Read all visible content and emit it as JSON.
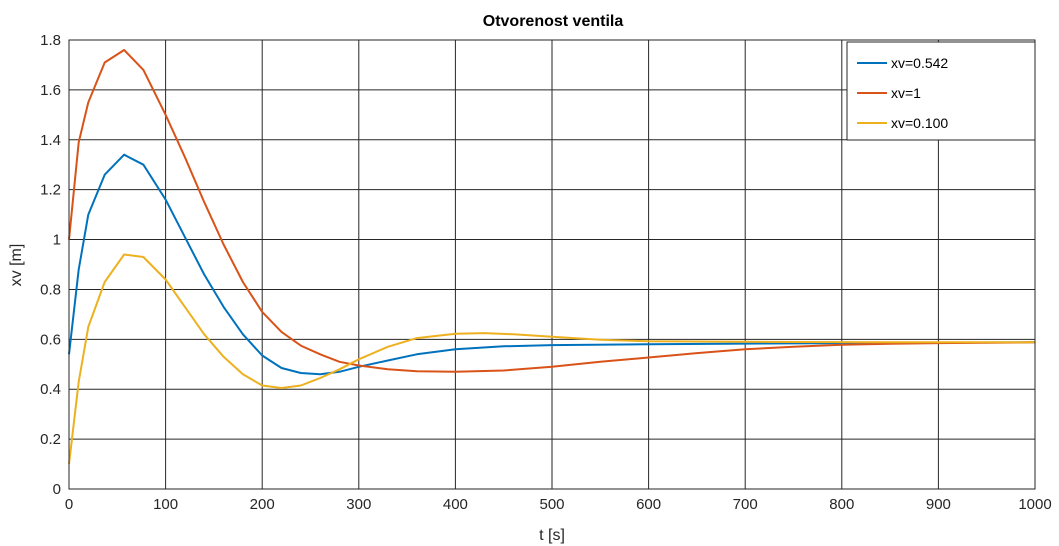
{
  "chart_data": {
    "type": "line",
    "title": "Otvorenost ventila",
    "xlabel": "t [s]",
    "ylabel": "xv [m]",
    "xlim": [
      0,
      1000
    ],
    "ylim": [
      0,
      1.8
    ],
    "xticks": [
      "0",
      "100",
      "200",
      "300",
      "400",
      "500",
      "600",
      "700",
      "800",
      "900",
      "1000"
    ],
    "yticks": [
      "0",
      "0.2",
      "0.4",
      "0.6",
      "0.8",
      "1",
      "1.2",
      "1.4",
      "1.6",
      "1.8"
    ],
    "grid": true,
    "legend_position": "top-right",
    "series": [
      {
        "name": "xv=0.542",
        "color": "#0072BD",
        "points": [
          [
            0,
            0.54
          ],
          [
            10,
            0.88
          ],
          [
            20,
            1.1
          ],
          [
            37,
            1.26
          ],
          [
            57,
            1.34
          ],
          [
            77,
            1.3
          ],
          [
            100,
            1.16
          ],
          [
            120,
            1.01
          ],
          [
            140,
            0.86
          ],
          [
            160,
            0.73
          ],
          [
            180,
            0.62
          ],
          [
            200,
            0.535
          ],
          [
            220,
            0.485
          ],
          [
            240,
            0.465
          ],
          [
            260,
            0.46
          ],
          [
            280,
            0.47
          ],
          [
            300,
            0.49
          ],
          [
            330,
            0.515
          ],
          [
            360,
            0.54
          ],
          [
            400,
            0.56
          ],
          [
            450,
            0.572
          ],
          [
            500,
            0.577
          ],
          [
            600,
            0.58
          ],
          [
            700,
            0.583
          ],
          [
            800,
            0.585
          ],
          [
            900,
            0.587
          ],
          [
            1000,
            0.588
          ]
        ]
      },
      {
        "name": "xv=1",
        "color": "#D95319",
        "points": [
          [
            0,
            1.0
          ],
          [
            10,
            1.39
          ],
          [
            20,
            1.55
          ],
          [
            37,
            1.71
          ],
          [
            57,
            1.76
          ],
          [
            77,
            1.68
          ],
          [
            100,
            1.5
          ],
          [
            120,
            1.33
          ],
          [
            140,
            1.15
          ],
          [
            160,
            0.98
          ],
          [
            180,
            0.83
          ],
          [
            200,
            0.71
          ],
          [
            220,
            0.63
          ],
          [
            240,
            0.575
          ],
          [
            260,
            0.54
          ],
          [
            280,
            0.51
          ],
          [
            300,
            0.495
          ],
          [
            330,
            0.48
          ],
          [
            360,
            0.472
          ],
          [
            400,
            0.47
          ],
          [
            450,
            0.475
          ],
          [
            500,
            0.49
          ],
          [
            550,
            0.51
          ],
          [
            600,
            0.527
          ],
          [
            650,
            0.545
          ],
          [
            700,
            0.56
          ],
          [
            750,
            0.57
          ],
          [
            800,
            0.578
          ],
          [
            850,
            0.582
          ],
          [
            900,
            0.585
          ],
          [
            1000,
            0.588
          ]
        ]
      },
      {
        "name": "xv=0.100",
        "color": "#EDB120",
        "points": [
          [
            0,
            0.1
          ],
          [
            10,
            0.43
          ],
          [
            20,
            0.65
          ],
          [
            37,
            0.83
          ],
          [
            57,
            0.94
          ],
          [
            77,
            0.93
          ],
          [
            100,
            0.84
          ],
          [
            120,
            0.73
          ],
          [
            140,
            0.62
          ],
          [
            160,
            0.53
          ],
          [
            180,
            0.46
          ],
          [
            200,
            0.415
          ],
          [
            220,
            0.405
          ],
          [
            240,
            0.415
          ],
          [
            260,
            0.445
          ],
          [
            280,
            0.48
          ],
          [
            300,
            0.52
          ],
          [
            330,
            0.57
          ],
          [
            360,
            0.605
          ],
          [
            400,
            0.622
          ],
          [
            430,
            0.625
          ],
          [
            460,
            0.62
          ],
          [
            500,
            0.61
          ],
          [
            550,
            0.598
          ],
          [
            600,
            0.592
          ],
          [
            700,
            0.59
          ],
          [
            800,
            0.589
          ],
          [
            900,
            0.588
          ],
          [
            1000,
            0.588
          ]
        ]
      }
    ]
  }
}
